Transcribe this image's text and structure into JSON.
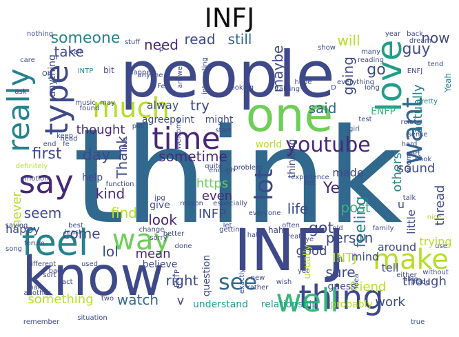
{
  "title": "INFJ",
  "palette": [
    "#440154",
    "#482878",
    "#3e4989",
    "#31688e",
    "#26828e",
    "#1f9e89",
    "#35b779",
    "#6ece58",
    "#b5de2b",
    "#fde725"
  ],
  "words": [
    {
      "t": "think",
      "c": "#31688e"
    },
    {
      "t": "people",
      "c": "#3e4989"
    },
    {
      "t": "INFJ",
      "c": "#3e4989"
    },
    {
      "t": "know",
      "c": "#3e4989"
    },
    {
      "t": "one",
      "c": "#6ece58"
    },
    {
      "t": "time",
      "c": "#482878"
    },
    {
      "t": "thing",
      "c": "#3e4989"
    },
    {
      "t": "feel",
      "c": "#26828e"
    },
    {
      "t": "love",
      "c": "#1f9e89"
    },
    {
      "t": "make",
      "c": "#b5de2b"
    },
    {
      "t": "well",
      "c": "#35b779"
    },
    {
      "t": "much",
      "c": "#b5de2b"
    },
    {
      "t": "really",
      "c": "#26828e"
    },
    {
      "t": "way",
      "c": "#6ece58"
    },
    {
      "t": "say",
      "c": "#482878"
    },
    {
      "t": "type",
      "c": "#3e4989"
    },
    {
      "t": "want",
      "c": "#31688e"
    },
    {
      "t": "lot",
      "c": "#3e4989"
    },
    {
      "t": "youtube",
      "c": "#482878"
    },
    {
      "t": "see",
      "c": "#31688e"
    },
    {
      "t": "someone",
      "c": "#26828e"
    },
    {
      "t": "read",
      "c": "#3e4989"
    },
    {
      "t": "still",
      "c": "#31688e"
    },
    {
      "t": "will",
      "c": "#b5de2b"
    },
    {
      "t": "need",
      "c": "#482878"
    },
    {
      "t": "take",
      "c": "#3e4989"
    },
    {
      "t": "guy",
      "c": "#3e4989"
    },
    {
      "t": "now",
      "c": "#3e4989"
    },
    {
      "t": "go",
      "c": "#3e4989"
    },
    {
      "t": "actually",
      "c": "#26828e"
    },
    {
      "t": "maybe",
      "c": "#3e4989"
    },
    {
      "t": "going",
      "c": "#3e4989"
    },
    {
      "t": "thought",
      "c": "#482878"
    },
    {
      "t": "first",
      "c": "#3e4989"
    },
    {
      "t": "day",
      "c": "#3e4989"
    },
    {
      "t": "Thank",
      "c": "#3e4989"
    },
    {
      "t": "said",
      "c": "#31688e"
    },
    {
      "t": "alway",
      "c": "#3e4989"
    },
    {
      "t": "try",
      "c": "#3e4989"
    },
    {
      "t": "sometime",
      "c": "#482878"
    },
    {
      "t": "others",
      "c": "#26828e"
    },
    {
      "t": "feeling",
      "c": "#26828e"
    },
    {
      "t": "ENFP",
      "c": "#35b779"
    },
    {
      "t": "made",
      "c": "#3e4989"
    },
    {
      "t": "sound",
      "c": "#3e4989"
    },
    {
      "t": "https",
      "c": "#6ece58"
    },
    {
      "t": "Ye",
      "c": "#482878"
    },
    {
      "t": "kind",
      "c": "#482878"
    },
    {
      "t": "even",
      "c": "#482878"
    },
    {
      "t": "life",
      "c": "#3e4989"
    },
    {
      "t": "post",
      "c": "#35b779"
    },
    {
      "t": "find",
      "c": "#b5de2b"
    },
    {
      "t": "look",
      "c": "#482878"
    },
    {
      "t": "INFP",
      "c": "#3e4989"
    },
    {
      "t": "seem",
      "c": "#3e4989"
    },
    {
      "t": "never",
      "c": "#b5de2b"
    },
    {
      "t": "happy",
      "c": "#3e4989"
    },
    {
      "t": "got",
      "c": "#3e4989"
    },
    {
      "t": "come",
      "c": "#3e4989"
    },
    {
      "t": "lol",
      "c": "#3e4989"
    },
    {
      "t": "mean",
      "c": "#482878"
    },
    {
      "t": "person",
      "c": "#3e4989"
    },
    {
      "t": "good",
      "c": "#3e4989"
    },
    {
      "t": "trying",
      "c": "#b5de2b"
    },
    {
      "t": "INTJ",
      "c": "#b5de2b"
    },
    {
      "t": "thread",
      "c": "#3e4989"
    },
    {
      "t": "sure",
      "c": "#3e4989"
    },
    {
      "t": "friend",
      "c": "#b5de2b"
    },
    {
      "t": "though",
      "c": "#3e4989"
    },
    {
      "t": "right",
      "c": "#3e4989"
    },
    {
      "t": "watch",
      "c": "#31688e"
    },
    {
      "t": "something",
      "c": "#b5de2b"
    },
    {
      "t": "understand",
      "c": "#1f9e89"
    },
    {
      "t": "relationship",
      "c": "#1f9e89"
    },
    {
      "t": "probably",
      "c": "#b5de2b"
    },
    {
      "t": "work",
      "c": "#3e4989"
    },
    {
      "t": "believe",
      "c": "#3e4989"
    },
    {
      "t": "tell",
      "c": "#3e4989"
    },
    {
      "t": "mind",
      "c": "#3e4989"
    },
    {
      "t": "usually",
      "c": "#b5de2b"
    },
    {
      "t": "question",
      "c": "#3e4989"
    },
    {
      "t": "around",
      "c": "#3e4989"
    },
    {
      "t": "guess",
      "c": "#3e4989"
    },
    {
      "t": "little",
      "c": "#3e4989"
    },
    {
      "t": "thinking",
      "c": "#3e4989"
    },
    {
      "t": "world",
      "c": "#b5de2b"
    },
    {
      "t": "point",
      "c": "#3e4989"
    },
    {
      "t": "agree",
      "c": "#3e4989"
    },
    {
      "t": "might",
      "c": "#3e4989"
    },
    {
      "t": "help",
      "c": "#3e4989"
    },
    {
      "t": "give",
      "c": "#3e4989"
    },
    {
      "t": "bit",
      "c": "#3e4989"
    },
    {
      "t": "music",
      "c": "#3e4989"
    },
    {
      "t": "anyone",
      "c": "#3e4989"
    },
    {
      "t": "INTP",
      "c": "#26828e"
    },
    {
      "t": "hope",
      "c": "#3e4989"
    },
    {
      "t": "everything",
      "c": "#3e4989"
    },
    {
      "t": "long",
      "c": "#3e4989"
    },
    {
      "t": "pretty",
      "c": "#26828e"
    },
    {
      "t": "Yeah",
      "c": "#26828e"
    },
    {
      "t": "experience",
      "c": "#3e4989"
    },
    {
      "t": "talk",
      "c": "#3e4989"
    },
    {
      "t": "nice",
      "c": "#b5de2b"
    },
    {
      "t": "use",
      "c": "#3e4989"
    },
    {
      "t": "different",
      "c": "#3e4989"
    },
    {
      "t": "used",
      "c": "#3e4989"
    },
    {
      "t": "two",
      "c": "#3e4989"
    },
    {
      "t": "remember",
      "c": "#3e4989"
    },
    {
      "t": "situation",
      "c": "#3e4989"
    },
    {
      "t": "true",
      "c": "#3e4989"
    },
    {
      "t": "ENTP",
      "c": "#3e4989"
    },
    {
      "t": "idea",
      "c": "#3e4989"
    },
    {
      "t": "usual",
      "c": "#3e4989"
    },
    {
      "t": "anything",
      "c": "#3e4989"
    },
    {
      "t": "definitely",
      "c": "#b5de2b"
    },
    {
      "t": "best",
      "c": "#3e4989"
    },
    {
      "t": "least",
      "c": "#3e4989"
    },
    {
      "t": "forum",
      "c": "#3e4989"
    },
    {
      "t": "song",
      "c": "#3e4989"
    },
    {
      "t": "saying",
      "c": "#3e4989"
    },
    {
      "t": "function",
      "c": "#3e4989"
    },
    {
      "t": "emotion",
      "c": "#3e4989"
    },
    {
      "t": "wrong",
      "c": "#3e4989"
    },
    {
      "t": "family",
      "c": "#3e4989"
    },
    {
      "t": "either",
      "c": "#3e4989"
    },
    {
      "t": "able",
      "c": "#3e4989"
    },
    {
      "t": "place",
      "c": "#3e4989"
    },
    {
      "t": "without",
      "c": "#3e4989"
    },
    {
      "t": "exactly",
      "c": "#3e4989"
    },
    {
      "t": "rather",
      "c": "#3e4989"
    },
    {
      "t": "done",
      "c": "#3e4989"
    },
    {
      "t": "bad",
      "c": "#3e4989"
    },
    {
      "t": "sort",
      "c": "#3e4989"
    },
    {
      "t": "fact",
      "c": "#3e4989"
    },
    {
      "t": "man",
      "c": "#3e4989"
    },
    {
      "t": "another",
      "c": "#3e4989"
    },
    {
      "t": "haha",
      "c": "#3e4989"
    },
    {
      "t": "hate",
      "c": "#3e4989"
    },
    {
      "t": "let",
      "c": "#3e4989"
    },
    {
      "t": "better",
      "c": "#3e4989"
    },
    {
      "t": "change",
      "c": "#3e4989"
    },
    {
      "t": "sorry",
      "c": "#3e4989"
    },
    {
      "t": "getting",
      "c": "#3e4989"
    },
    {
      "t": "reason",
      "c": "#3e4989"
    },
    {
      "t": "especially",
      "c": "#3e4989"
    },
    {
      "t": "everyone",
      "c": "#3e4989"
    },
    {
      "t": "often",
      "c": "#3e4989"
    },
    {
      "t": "great",
      "c": "#3e4989"
    },
    {
      "t": "new",
      "c": "#3e4989"
    },
    {
      "t": "wish",
      "c": "#3e4989"
    },
    {
      "t": "quite",
      "c": "#3e4989"
    },
    {
      "t": "enough",
      "c": "#3e4989"
    },
    {
      "t": "problem",
      "c": "#3e4989"
    },
    {
      "t": "start",
      "c": "#3e4989"
    },
    {
      "t": "felt",
      "c": "#3e4989"
    },
    {
      "t": "girl",
      "c": "#3e4989"
    },
    {
      "t": "hard",
      "c": "#3e4989"
    },
    {
      "t": "part",
      "c": "#3e4989"
    },
    {
      "t": "book",
      "c": "#3e4989"
    },
    {
      "t": "relate",
      "c": "#3e4989"
    },
    {
      "t": "test",
      "c": "#3e4989"
    },
    {
      "t": "sense",
      "c": "#3e4989"
    },
    {
      "t": "talking",
      "c": "#3e4989"
    },
    {
      "t": "looking",
      "c": "#3e4989"
    },
    {
      "t": "interesting",
      "c": "#3e4989"
    },
    {
      "t": "answer",
      "c": "#3e4989"
    },
    {
      "t": "found",
      "c": "#3e4989"
    },
    {
      "t": "may",
      "c": "#3e4989"
    },
    {
      "t": "Oh",
      "c": "#3e4989"
    },
    {
      "t": "care",
      "c": "#3e4989"
    },
    {
      "t": "ask",
      "c": "#3e4989"
    },
    {
      "t": "nothing",
      "c": "#3e4989"
    },
    {
      "t": "happen",
      "c": "#3e4989"
    },
    {
      "t": "stuff",
      "c": "#3e4989"
    },
    {
      "t": "year",
      "c": "#3e4989"
    },
    {
      "t": "many",
      "c": "#3e4989"
    },
    {
      "t": "reading",
      "c": "#3e4989"
    },
    {
      "t": "back",
      "c": "#3e4989"
    },
    {
      "t": "dream",
      "c": "#3e4989"
    },
    {
      "t": "ENFJ",
      "c": "#3e4989"
    },
    {
      "t": "tend",
      "c": "#3e4989"
    },
    {
      "t": "put",
      "c": "#3e4989"
    },
    {
      "t": "fe",
      "c": "#3e4989"
    },
    {
      "t": "Fe",
      "c": "#3e4989"
    },
    {
      "t": "Ni",
      "c": "#3e4989"
    },
    {
      "t": "jpg",
      "c": "#3e4989"
    },
    {
      "t": "Welcome",
      "c": "#3e4989"
    },
    {
      "t": "live",
      "c": "#3e4989"
    },
    {
      "t": "end",
      "c": "#3e4989"
    },
    {
      "t": "head",
      "c": "#3e4989"
    },
    {
      "t": "keep",
      "c": "#3e4989"
    },
    {
      "t": "old",
      "c": "#3e4989"
    },
    {
      "t": "eye",
      "c": "#3e4989"
    },
    {
      "t": "yet",
      "c": "#3e4989"
    },
    {
      "t": "D",
      "c": "#3e4989"
    },
    {
      "t": "p",
      "c": "#3e4989"
    },
    {
      "t": "u",
      "c": "#3e4989"
    },
    {
      "t": "v",
      "c": "#3e4989"
    },
    {
      "t": "show",
      "c": "#3e4989"
    },
    {
      "t": "call",
      "c": "#3e4989"
    }
  ]
}
